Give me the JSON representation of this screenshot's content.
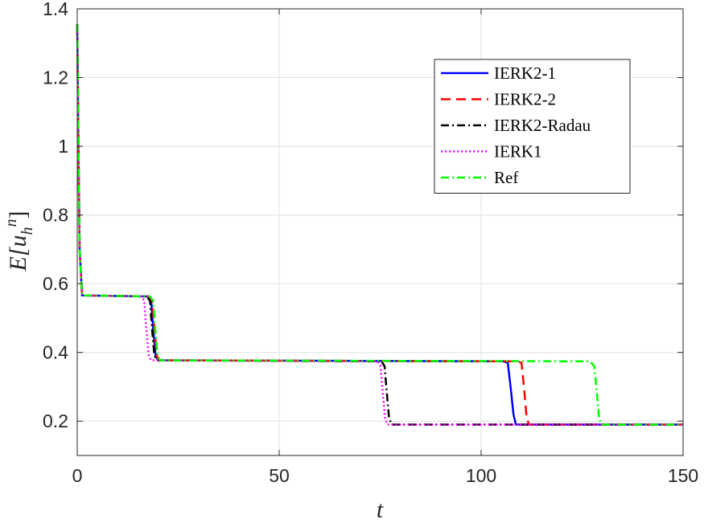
{
  "chart_data": {
    "type": "line",
    "title": "",
    "xlabel": "t",
    "ylabel": "E[u_h^n]",
    "xlim": [
      0,
      150
    ],
    "ylim": [
      0.1,
      1.4
    ],
    "xticks": [
      0,
      50,
      100,
      150
    ],
    "xtick_labels": [
      "0",
      "50",
      "100",
      "150"
    ],
    "yticks": [
      0.2,
      0.4,
      0.6,
      0.8,
      1.0,
      1.2,
      1.4
    ],
    "ytick_labels": [
      "0.2",
      "0.4",
      "0.6",
      "0.8",
      "1",
      "1.2",
      "1.4"
    ],
    "grid": true,
    "legend_position": "top-right",
    "series": [
      {
        "name": "IERK2-1",
        "color": "#0000ff",
        "dash": "solid",
        "x": [
          0,
          0.3,
          0.6,
          1.2,
          17.5,
          18.3,
          18.8,
          19.4,
          20,
          105.5,
          106.6,
          107.3,
          108.0,
          108.6,
          150
        ],
        "y": [
          1.355,
          1.0,
          0.7,
          0.566,
          0.563,
          0.55,
          0.47,
          0.39,
          0.377,
          0.374,
          0.37,
          0.3,
          0.22,
          0.19,
          0.19
        ]
      },
      {
        "name": "IERK2-2",
        "color": "#ff0000",
        "dash": "dashed",
        "x": [
          0,
          0.3,
          0.6,
          1.2,
          17.8,
          18.6,
          19.1,
          19.7,
          20.3,
          109.0,
          110.0,
          110.6,
          111.2,
          111.8,
          150
        ],
        "y": [
          1.355,
          1.0,
          0.7,
          0.566,
          0.563,
          0.55,
          0.47,
          0.39,
          0.377,
          0.374,
          0.37,
          0.3,
          0.22,
          0.19,
          0.19
        ]
      },
      {
        "name": "IERK2-Radau",
        "color": "#000000",
        "dash": "dashdot",
        "x": [
          0,
          0.3,
          0.6,
          1.2,
          17.2,
          18.0,
          18.5,
          19.1,
          19.7,
          75.3,
          76.1,
          76.6,
          77.2,
          77.8,
          150
        ],
        "y": [
          1.355,
          1.0,
          0.7,
          0.566,
          0.563,
          0.55,
          0.47,
          0.39,
          0.377,
          0.374,
          0.36,
          0.29,
          0.21,
          0.19,
          0.19
        ]
      },
      {
        "name": "IERK1",
        "color": "#ff00ff",
        "dash": "dotted",
        "x": [
          0,
          0.3,
          0.6,
          1.2,
          16.0,
          16.6,
          17.1,
          17.7,
          18.3,
          74.3,
          75.1,
          75.6,
          76.2,
          76.8,
          150
        ],
        "y": [
          1.355,
          1.0,
          0.7,
          0.566,
          0.563,
          0.55,
          0.47,
          0.39,
          0.377,
          0.374,
          0.36,
          0.29,
          0.21,
          0.19,
          0.19
        ]
      },
      {
        "name": "Ref",
        "color": "#00ff00",
        "dash": "dashdot",
        "x": [
          0,
          0.3,
          0.6,
          1.2,
          18.0,
          18.8,
          19.3,
          19.9,
          20.5,
          127.0,
          128.0,
          128.6,
          129.2,
          129.8,
          150
        ],
        "y": [
          1.355,
          1.0,
          0.7,
          0.566,
          0.563,
          0.55,
          0.47,
          0.39,
          0.377,
          0.374,
          0.36,
          0.29,
          0.21,
          0.19,
          0.19
        ]
      }
    ]
  }
}
